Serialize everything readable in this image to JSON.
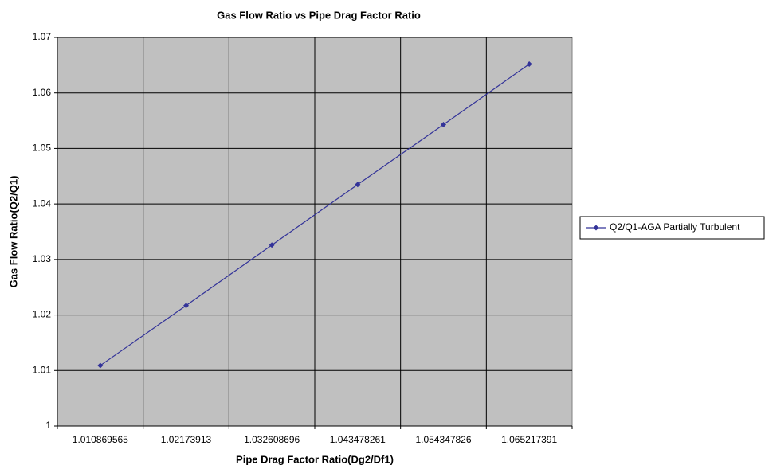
{
  "chart_data": {
    "type": "line",
    "title": "Gas Flow Ratio vs Pipe Drag Factor Ratio",
    "x_label": "Pipe Drag Factor Ratio(Dg2/Df1)",
    "y_label": "Gas Flow Ratio(Q2/Q1)",
    "categories": [
      "1.010869565",
      "1.02173913",
      "1.032608696",
      "1.043478261",
      "1.054347826",
      "1.065217391"
    ],
    "series": [
      {
        "name": "Q2/Q1-AGA Partially Turbulent",
        "color": "#333399",
        "values": [
          1.0109,
          1.0217,
          1.0326,
          1.0435,
          1.0543,
          1.0652
        ]
      }
    ],
    "ylim": [
      1,
      1.07
    ],
    "yticks": [
      1,
      1.01,
      1.02,
      1.03,
      1.04,
      1.05,
      1.06,
      1.07
    ],
    "grid": true,
    "legend": "right"
  }
}
